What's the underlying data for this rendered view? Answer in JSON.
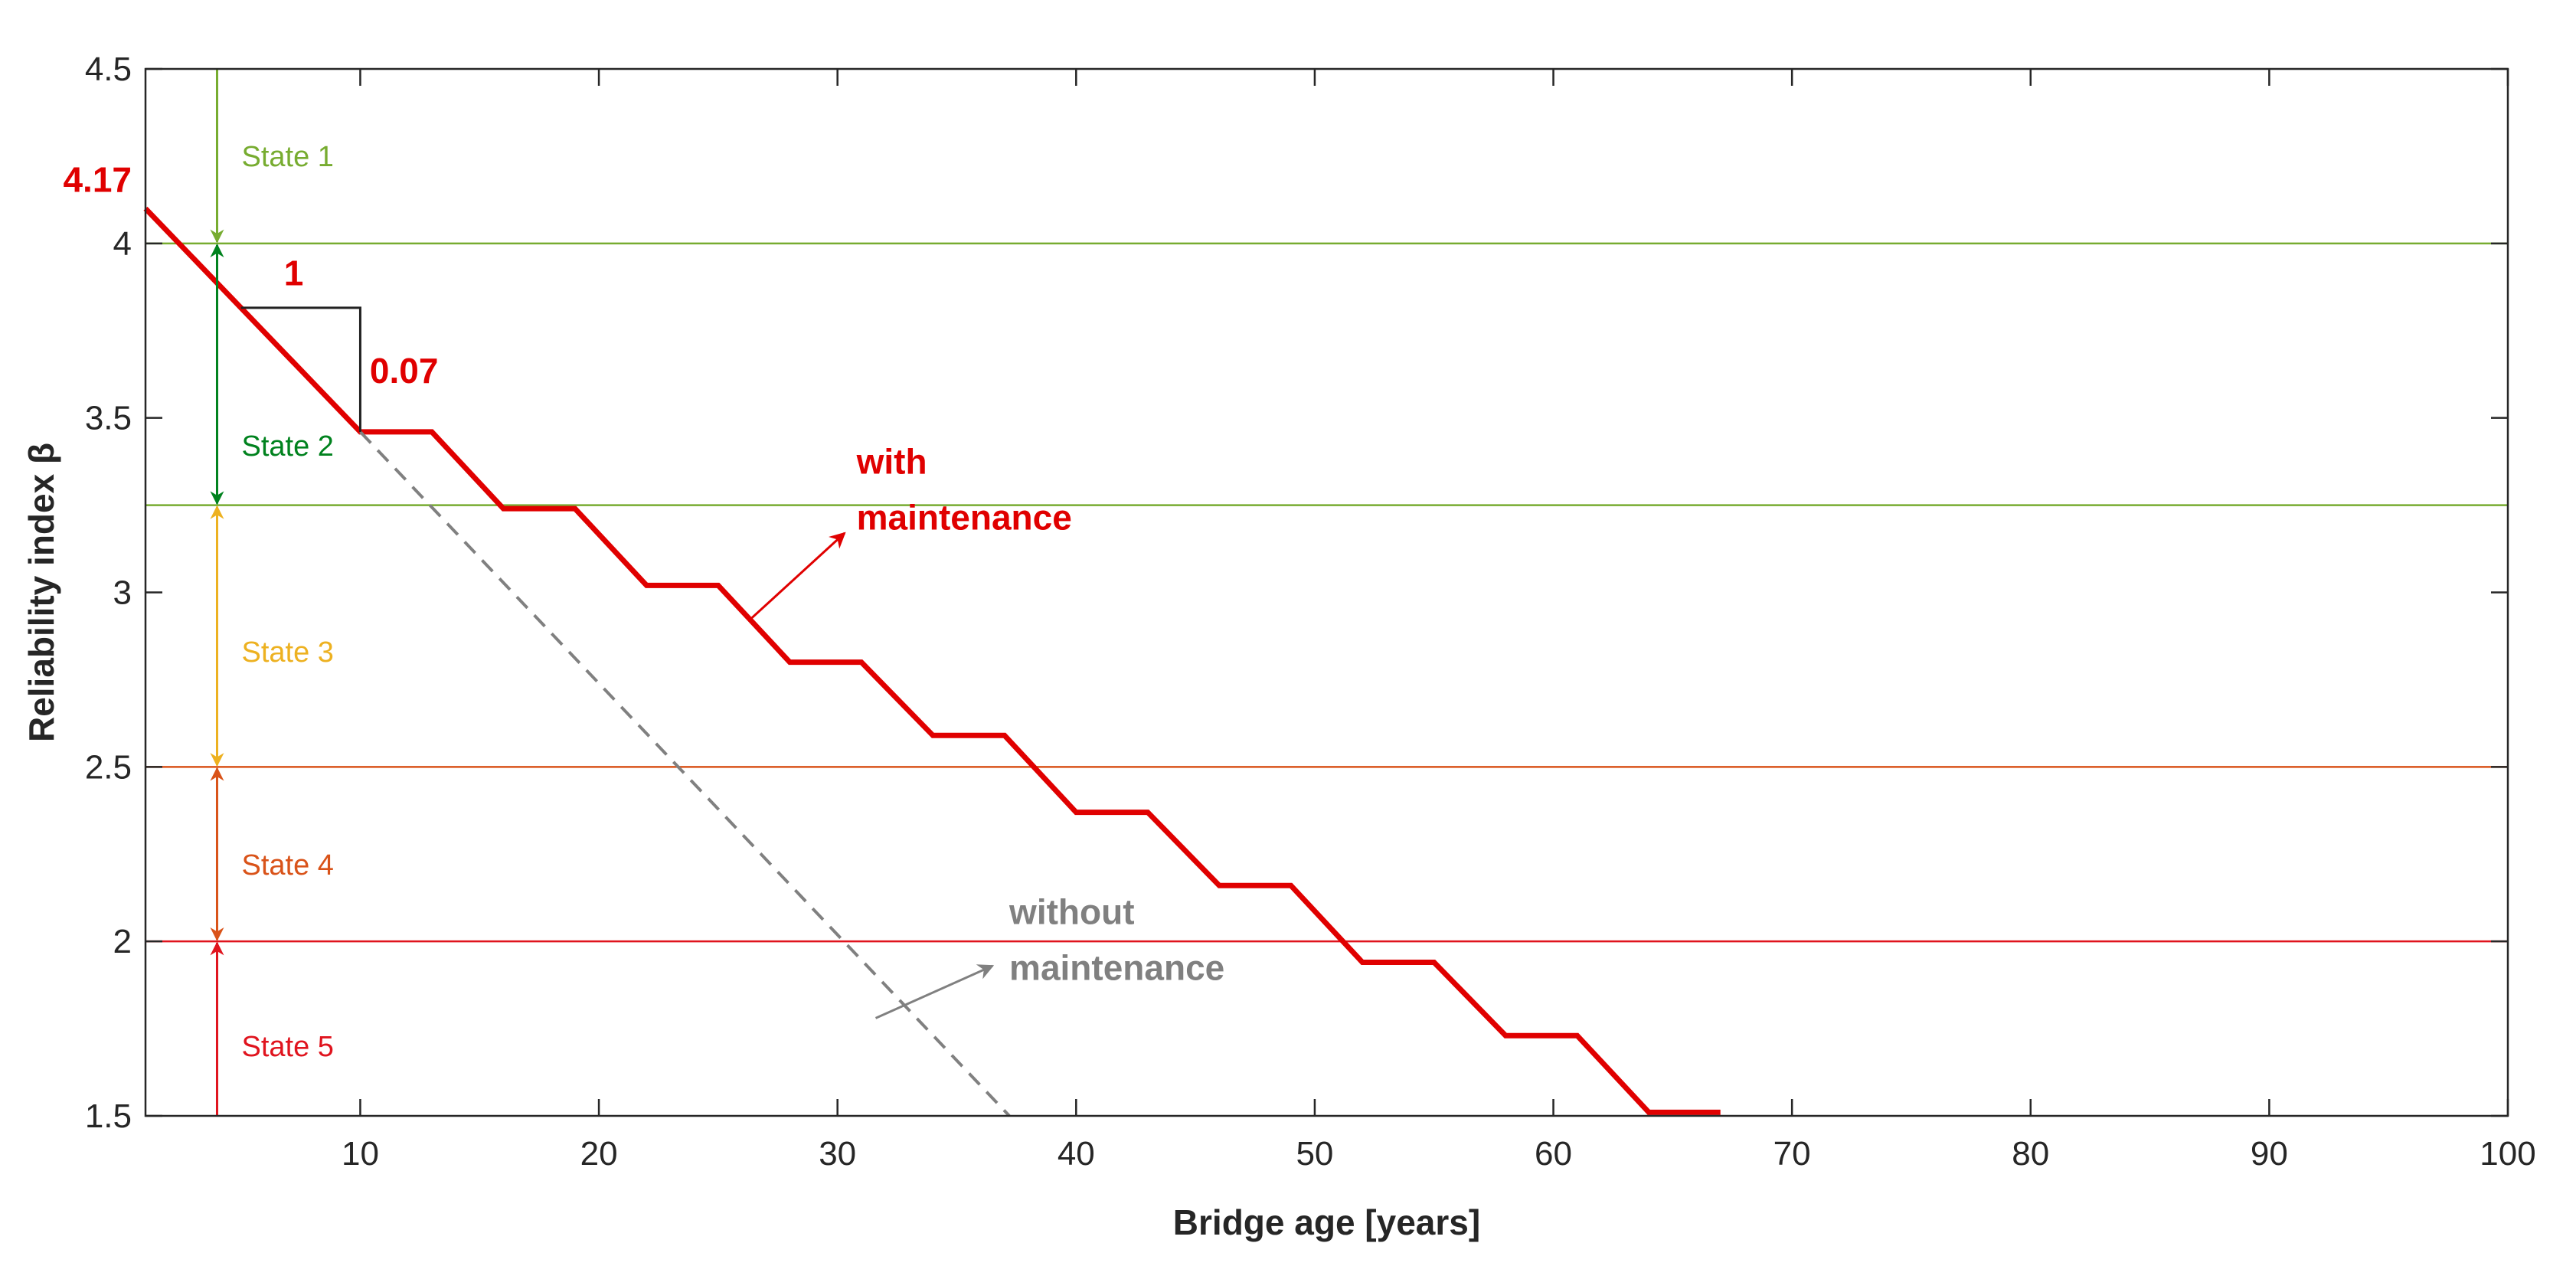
{
  "chart_data": {
    "type": "line",
    "xlabel": "Bridge age [years]",
    "ylabel": "Reliability index β",
    "xlim": [
      1,
      100
    ],
    "ylim": [
      1.5,
      4.5
    ],
    "xticks": [
      10,
      20,
      30,
      40,
      50,
      60,
      70,
      80,
      90,
      100
    ],
    "yticks": [
      1.5,
      2,
      2.5,
      3,
      3.5,
      4,
      4.5
    ],
    "thresholds": [
      {
        "name": "State 1/2 boundary",
        "value": 4.0,
        "color": "#77ac30"
      },
      {
        "name": "State 2/3 boundary",
        "value": 3.25,
        "color": "#77ac30"
      },
      {
        "name": "State 3/4 boundary",
        "value": 2.5,
        "color": "#d95319"
      },
      {
        "name": "State 4/5 boundary",
        "value": 2.0,
        "color": "#e0141e"
      }
    ],
    "states": [
      {
        "label": "State 1",
        "from": 4.0,
        "to": 4.5,
        "color": "#77ac30",
        "label_y": 4.25
      },
      {
        "label": "State 2",
        "from": 3.25,
        "to": 4.0,
        "color": "#00821e",
        "label_y": 3.42
      },
      {
        "label": "State 3",
        "from": 2.5,
        "to": 3.25,
        "color": "#edb120",
        "label_y": 2.83
      },
      {
        "label": "State 4",
        "from": 2.0,
        "to": 2.5,
        "color": "#d95319",
        "label_y": 2.22
      },
      {
        "label": "State 5",
        "from": 1.5,
        "to": 2.0,
        "color": "#e0141e",
        "label_y": 1.7
      }
    ],
    "state_arrow_x": 4,
    "series": [
      {
        "name": "with maintenance",
        "style": "solid",
        "color": "#e00000",
        "x": [
          1,
          10,
          13,
          16,
          19,
          22,
          25,
          28,
          31,
          34,
          37,
          40,
          43,
          46,
          49,
          52,
          55,
          58,
          61,
          64,
          67
        ],
        "y": [
          4.1,
          3.46,
          3.46,
          3.24,
          3.24,
          3.02,
          3.02,
          2.8,
          2.8,
          2.59,
          2.59,
          2.37,
          2.37,
          2.16,
          2.16,
          1.94,
          1.94,
          1.73,
          1.73,
          1.51,
          1.51
        ]
      },
      {
        "name": "without maintenance",
        "style": "dashed",
        "color": "#808080",
        "x": [
          10,
          37.2
        ],
        "y": [
          3.46,
          1.5
        ]
      }
    ],
    "annotations": {
      "initial_value": "4.17",
      "slope_run": "1",
      "slope_rise": "0.07",
      "with_maintenance": [
        "with",
        "maintenance"
      ],
      "without_maintenance": [
        "without",
        "maintenance"
      ]
    }
  }
}
